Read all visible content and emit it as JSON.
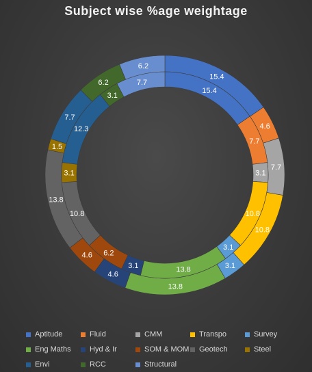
{
  "chart_data": {
    "type": "doughnut",
    "title": "Subject wise %age weightage",
    "legend_position": "bottom",
    "categories": [
      "Aptitude",
      "Fluid",
      "CMM",
      "Transpo",
      "Survey",
      "Eng Maths",
      "Hyd & Ir",
      "SOM & MOM",
      "Geotech",
      "Steel",
      "Envi",
      "RCC",
      "Structural"
    ],
    "colors": [
      "#4472C4",
      "#ED7D31",
      "#A5A5A5",
      "#FFC000",
      "#5B9BD5",
      "#70AD47",
      "#264478",
      "#9E480E",
      "#636363",
      "#997300",
      "#255E91",
      "#43682B",
      "#698ED0"
    ],
    "series": [
      {
        "ring": "outer",
        "values": [
          15.4,
          4.6,
          7.7,
          10.8,
          3.1,
          13.8,
          4.6,
          4.6,
          13.8,
          1.5,
          7.7,
          6.2,
          6.2
        ]
      },
      {
        "ring": "inner",
        "values": [
          15.4,
          7.7,
          3.1,
          10.8,
          3.1,
          13.8,
          3.1,
          6.2,
          10.8,
          3.1,
          12.3,
          3.1,
          7.7
        ]
      }
    ]
  }
}
